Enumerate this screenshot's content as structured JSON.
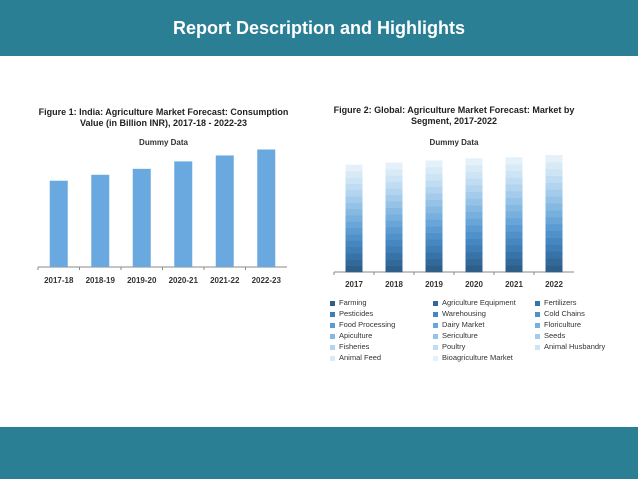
{
  "header": {
    "title": "Report Description and Highlights"
  },
  "colors": {
    "bar_blue": "#6aa8e0",
    "brand_band": "#2b7f95"
  },
  "chart_data": [
    {
      "type": "bar",
      "title": "Figure 1: India: Agriculture Market Forecast: Consumption Value (in Billion INR), 2017-18 - 2022-23",
      "subtitle": "Dummy Data",
      "categories": [
        "2017-18",
        "2018-19",
        "2019-20",
        "2020-21",
        "2021-22",
        "2022-23"
      ],
      "values": [
        58,
        62,
        66,
        71,
        75,
        79
      ],
      "ylim": [
        0,
        80
      ],
      "grid": false
    },
    {
      "type": "bar",
      "stacked": true,
      "title": "Figure 2: Global: Agriculture Market Forecast: Market by Segment, 2017-2022",
      "subtitle": "Dummy Data",
      "categories": [
        "2017",
        "2018",
        "2019",
        "2020",
        "2021",
        "2022"
      ],
      "totals": [
        100,
        102,
        104,
        106,
        107,
        109
      ],
      "ylim": [
        0,
        110
      ],
      "grid": false,
      "segments": [
        {
          "name": "Farming",
          "color": "#2e5f88"
        },
        {
          "name": "Agriculture Equipment",
          "color": "#33699a"
        },
        {
          "name": "Fertilizers",
          "color": "#3873a8"
        },
        {
          "name": "Pesticides",
          "color": "#3e7db5"
        },
        {
          "name": "Warehousing",
          "color": "#4787c0"
        },
        {
          "name": "Cold Chains",
          "color": "#5191ca"
        },
        {
          "name": "Food Processing",
          "color": "#5c9bd2"
        },
        {
          "name": "Dairy Market",
          "color": "#69a5d8"
        },
        {
          "name": "Floriculture",
          "color": "#77afdd"
        },
        {
          "name": "Apiculture",
          "color": "#86b9e2"
        },
        {
          "name": "Sericulture",
          "color": "#95c2e7"
        },
        {
          "name": "Seeds",
          "color": "#a4cbeb"
        },
        {
          "name": "Fisheries",
          "color": "#b2d4ef"
        },
        {
          "name": "Poultry",
          "color": "#c0dcf2"
        },
        {
          "name": "Animal Husbandry",
          "color": "#cde4f5"
        },
        {
          "name": "Animal Feed",
          "color": "#d9eaf7"
        },
        {
          "name": "Bioagriculture Market",
          "color": "#e5f1fa"
        }
      ]
    }
  ]
}
